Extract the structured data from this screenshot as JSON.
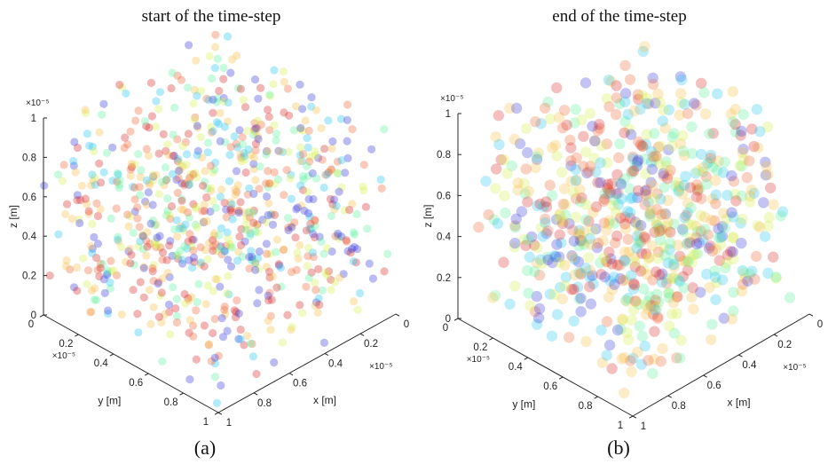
{
  "chart_data": [
    {
      "type": "scatter3d",
      "title": "start of the time-step",
      "caption": "(a)",
      "xlabel": "x [m]",
      "ylabel": "y [m]",
      "zlabel": "z [m]",
      "xlim": [
        0,
        1e-05
      ],
      "ylim": [
        0,
        1e-05
      ],
      "zlim": [
        0,
        1e-05
      ],
      "x_ticks": [
        "0",
        "0.2",
        "0.4",
        "0.6",
        "0.8",
        "1"
      ],
      "y_ticks": [
        "0",
        "0.2",
        "0.4",
        "0.6",
        "0.8",
        "1"
      ],
      "z_ticks": [
        "0",
        "0.2",
        "0.4",
        "0.6",
        "0.8",
        "1"
      ],
      "x_exponent": "×10⁻⁵",
      "y_exponent": "×10⁻⁵",
      "z_exponent": "×10⁻⁵",
      "particle_count": 800,
      "marker_size": "small",
      "marker_opacity": 0.35,
      "colormap": [
        "#3b3bdc",
        "#27c7f0",
        "#5ff0a0",
        "#d8f050",
        "#f5c04a",
        "#f06a3a",
        "#d82a2a"
      ],
      "distribution": "uniform random in unit cube"
    },
    {
      "type": "scatter3d",
      "title": "end of the time-step",
      "caption": "(b)",
      "xlabel": "x [m]",
      "ylabel": "y [m]",
      "zlabel": "z [m]",
      "xlim": [
        0,
        1e-05
      ],
      "ylim": [
        0,
        1e-05
      ],
      "zlim": [
        0,
        1e-05
      ],
      "x_ticks": [
        "0",
        "0.2",
        "0.4",
        "0.6",
        "0.8",
        "1"
      ],
      "y_ticks": [
        "0",
        "0.2",
        "0.4",
        "0.6",
        "0.8",
        "1"
      ],
      "z_ticks": [
        "0",
        "0.2",
        "0.4",
        "0.6",
        "0.8",
        "1"
      ],
      "x_exponent": "×10⁻⁵",
      "y_exponent": "×10⁻⁵",
      "z_exponent": "×10⁻⁵",
      "particle_count": 700,
      "marker_size": "large",
      "marker_opacity": 0.3,
      "colormap": [
        "#3b3bdc",
        "#27c7f0",
        "#5ff0a0",
        "#d8f050",
        "#f5c04a",
        "#f06a3a",
        "#d82a2a"
      ],
      "distribution": "uniform random in unit cube"
    }
  ]
}
